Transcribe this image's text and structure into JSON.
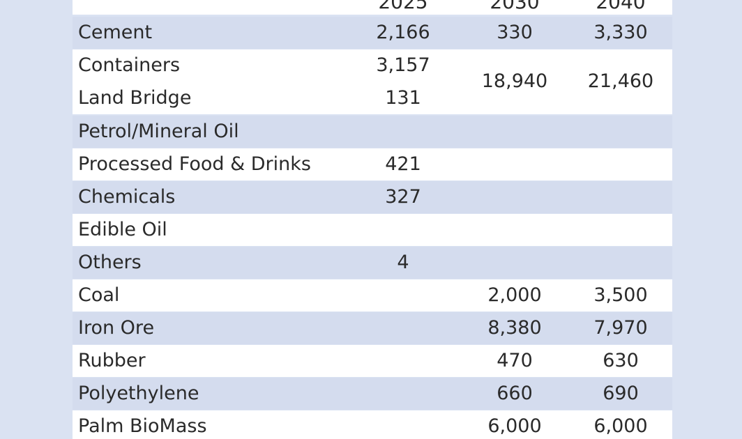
{
  "header": {
    "col1": "2025",
    "col2": "2030",
    "col3": "2040"
  },
  "rows": [
    {
      "label": "Cement",
      "c1": "2,166",
      "c2": "330",
      "c3": "3,330"
    },
    {
      "label": "Containers",
      "c1": "3,157",
      "c2": "18,940",
      "c3": "21,460"
    },
    {
      "label": "Land Bridge",
      "c1": "131",
      "c2": "",
      "c3": ""
    },
    {
      "label": "Petrol/Mineral Oil",
      "c1": "",
      "c2": "",
      "c3": ""
    },
    {
      "label": "Processed Food & Drinks",
      "c1": "421",
      "c2": "",
      "c3": ""
    },
    {
      "label": "Chemicals",
      "c1": "327",
      "c2": "",
      "c3": ""
    },
    {
      "label": "Edible Oil",
      "c1": "",
      "c2": "",
      "c3": ""
    },
    {
      "label": "Others",
      "c1": "4",
      "c2": "",
      "c3": ""
    },
    {
      "label": "Coal",
      "c1": "",
      "c2": "2,000",
      "c3": "3,500"
    },
    {
      "label": "Iron Ore",
      "c1": "",
      "c2": "8,380",
      "c3": "7,970"
    },
    {
      "label": "Rubber",
      "c1": "",
      "c2": "470",
      "c3": "630"
    },
    {
      "label": "Polyethylene",
      "c1": "",
      "c2": "660",
      "c3": "690"
    },
    {
      "label": "Palm BioMass",
      "c1": "",
      "c2": "6,000",
      "c3": "6,000"
    }
  ]
}
